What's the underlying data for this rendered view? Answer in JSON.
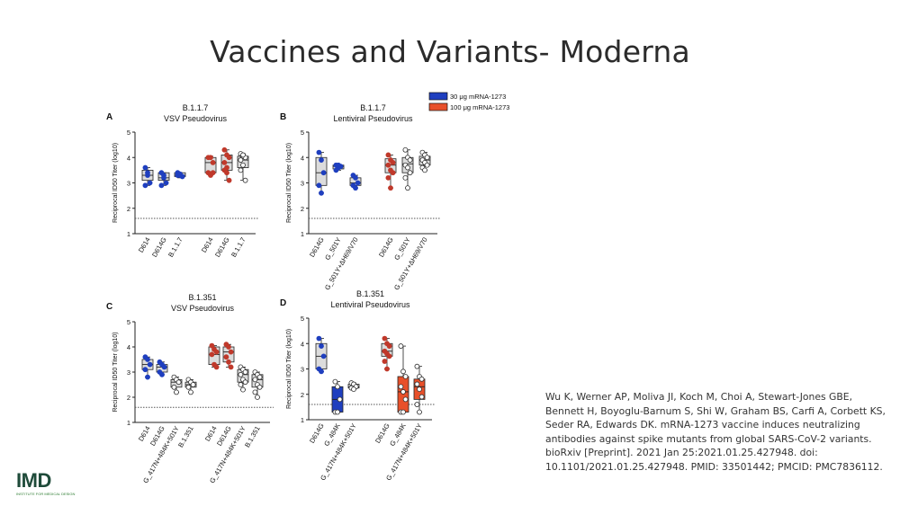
{
  "slide": {
    "title": "Vaccines and Variants- Moderna",
    "citation": "Wu K, Werner AP, Moliva JI, Koch M, Choi A, Stewart-Jones GBE, Bennett H, Boyoglu-Barnum S, Shi W, Graham BS, Carfi A, Corbett KS, Seder RA, Edwards DK. mRNA-1273 vaccine induces neutralizing antibodies against spike mutants from global SARS-CoV-2 variants. bioRxiv [Preprint]. 2021 Jan 25:2021.01.25.427948. doi: 10.1101/2021.01.25.427948. PMID: 33501442; PMCID: PMC7836112.",
    "logo_text": "IMD",
    "logo_tagline": "INSTITUTE FOR MEDICAL DESIGN"
  },
  "legend": {
    "items": [
      {
        "label": "30 μg mRNA-1273",
        "color": "#1f3fbf"
      },
      {
        "label": "100 μg mRNA-1273",
        "color": "#e8502a"
      }
    ]
  },
  "colors": {
    "blue": "#1f3fbf",
    "red": "#c0392b",
    "box_grey": "#dcdcdc",
    "axis": "#222222",
    "dotted_line": "#555555"
  },
  "chart_data": [
    {
      "panel": "A",
      "type": "box",
      "title": "B.1.1.7",
      "subtitle": "VSV Pseudovirus",
      "ylabel": "Reciprocal ID50 Titer (log10)",
      "ylim": [
        1,
        5
      ],
      "yticks": [
        1,
        2,
        3,
        4,
        5
      ],
      "threshold": 1.6,
      "categories": [
        {
          "label": "D614",
          "group": "30",
          "min": 2.9,
          "q1": 3.1,
          "median": 3.3,
          "q3": 3.5,
          "max": 3.6,
          "points": [
            3.6,
            3.3,
            3.0,
            2.9,
            3.4
          ]
        },
        {
          "label": "D614G",
          "group": "30",
          "min": 2.9,
          "q1": 3.1,
          "median": 3.2,
          "q3": 3.4,
          "max": 3.4,
          "points": [
            3.4,
            3.3,
            3.0,
            2.9,
            3.2
          ]
        },
        {
          "label": "B.1.1.7",
          "group": "30",
          "min": 3.2,
          "q1": 3.25,
          "median": 3.3,
          "q3": 3.4,
          "max": 3.4,
          "points": [
            3.4,
            3.3,
            3.25,
            3.3,
            3.35
          ]
        },
        {
          "label": "D614",
          "group": "100",
          "min": 3.3,
          "q1": 3.4,
          "median": 3.8,
          "q3": 4.0,
          "max": 4.05,
          "points": [
            4.0,
            4.0,
            3.8,
            3.4,
            3.3,
            3.4
          ]
        },
        {
          "label": "D614G",
          "group": "100",
          "min": 3.1,
          "q1": 3.5,
          "median": 3.8,
          "q3": 4.1,
          "max": 4.3,
          "points": [
            4.3,
            4.1,
            4.0,
            3.8,
            3.6,
            3.1,
            3.5,
            3.4
          ]
        },
        {
          "label": "B.1.1.7",
          "group": "100",
          "min": 3.1,
          "q1": 3.6,
          "median": 3.9,
          "q3": 4.05,
          "max": 4.15,
          "points": [
            4.15,
            4.05,
            4.0,
            3.9,
            3.7,
            3.1,
            3.5,
            4.1
          ]
        }
      ]
    },
    {
      "panel": "B",
      "type": "box",
      "title": "B.1.1.7",
      "subtitle": "Lentiviral Pseudovirus",
      "ylabel": "Reciprocal ID50 Titer (log10)",
      "ylim": [
        1,
        5
      ],
      "yticks": [
        1,
        2,
        3,
        4,
        5
      ],
      "threshold": 1.6,
      "categories": [
        {
          "label": "D614G",
          "group": "30",
          "min": 2.6,
          "q1": 2.9,
          "median": 3.4,
          "q3": 4.0,
          "max": 4.2,
          "points": [
            4.2,
            3.9,
            3.4,
            2.9,
            2.6
          ]
        },
        {
          "label": "G_501Y",
          "group": "30",
          "min": 3.5,
          "q1": 3.55,
          "median": 3.65,
          "q3": 3.7,
          "max": 3.7,
          "points": [
            3.7,
            3.6,
            3.65,
            3.5,
            3.7
          ]
        },
        {
          "label": "G_501Y+ΔH69/V70",
          "group": "30",
          "min": 2.8,
          "q1": 2.9,
          "median": 3.0,
          "q3": 3.2,
          "max": 3.3,
          "points": [
            3.3,
            3.2,
            3.0,
            2.9,
            2.8
          ]
        },
        {
          "label": "D614G",
          "group": "100",
          "min": 2.8,
          "q1": 3.4,
          "median": 3.7,
          "q3": 3.95,
          "max": 4.1,
          "points": [
            4.1,
            3.9,
            3.8,
            3.7,
            3.5,
            3.4,
            3.2,
            2.8
          ]
        },
        {
          "label": "G_501Y",
          "group": "100",
          "min": 2.8,
          "q1": 3.4,
          "median": 3.75,
          "q3": 4.0,
          "max": 4.3,
          "points": [
            4.3,
            4.0,
            3.9,
            3.7,
            3.6,
            3.4,
            3.2,
            2.8
          ]
        },
        {
          "label": "G_501Y+ΔH69/V70",
          "group": "100",
          "min": 3.5,
          "q1": 3.7,
          "median": 3.9,
          "q3": 4.05,
          "max": 4.2,
          "points": [
            4.2,
            4.1,
            4.0,
            3.9,
            3.8,
            3.7,
            3.6,
            3.5
          ]
        }
      ]
    },
    {
      "panel": "C",
      "type": "box",
      "title": "B.1.351",
      "subtitle": "VSV Pseudovirus",
      "ylabel": "Reciprocal ID50 Titer (log10)",
      "ylim": [
        1,
        5
      ],
      "yticks": [
        1,
        2,
        3,
        4,
        5
      ],
      "threshold": 1.6,
      "categories": [
        {
          "label": "D614",
          "group": "30",
          "min": 2.8,
          "q1": 3.1,
          "median": 3.3,
          "q3": 3.5,
          "max": 3.6,
          "points": [
            3.6,
            3.5,
            3.3,
            3.1,
            2.8
          ]
        },
        {
          "label": "D614G",
          "group": "30",
          "min": 2.9,
          "q1": 3.0,
          "median": 3.2,
          "q3": 3.3,
          "max": 3.4,
          "points": [
            3.4,
            3.3,
            3.2,
            3.0,
            2.9
          ]
        },
        {
          "label": "G_417N+484K+501Y",
          "group": "30",
          "min": 2.2,
          "q1": 2.4,
          "median": 2.6,
          "q3": 2.7,
          "max": 2.8,
          "points": [
            2.8,
            2.7,
            2.6,
            2.4,
            2.2
          ]
        },
        {
          "label": "B.1.351",
          "group": "30",
          "min": 2.2,
          "q1": 2.4,
          "median": 2.5,
          "q3": 2.6,
          "max": 2.7,
          "points": [
            2.7,
            2.6,
            2.5,
            2.4,
            2.2
          ]
        },
        {
          "label": "D614",
          "group": "100",
          "min": 3.2,
          "q1": 3.3,
          "median": 3.7,
          "q3": 4.0,
          "max": 4.05,
          "points": [
            4.05,
            3.9,
            3.8,
            3.7,
            3.3,
            3.2
          ]
        },
        {
          "label": "D614G",
          "group": "100",
          "min": 3.2,
          "q1": 3.4,
          "median": 3.8,
          "q3": 4.0,
          "max": 4.1,
          "points": [
            4.1,
            4.0,
            3.8,
            3.6,
            3.4,
            3.2
          ]
        },
        {
          "label": "G_417N+484K+501Y",
          "group": "100",
          "min": 2.3,
          "q1": 2.6,
          "median": 2.9,
          "q3": 3.1,
          "max": 3.2,
          "points": [
            3.2,
            3.1,
            3.0,
            2.9,
            2.7,
            2.6,
            2.5,
            2.3
          ]
        },
        {
          "label": "B.1.351",
          "group": "100",
          "min": 2.0,
          "q1": 2.4,
          "median": 2.7,
          "q3": 2.9,
          "max": 3.0,
          "points": [
            3.0,
            2.9,
            2.8,
            2.7,
            2.5,
            2.4,
            2.2,
            2.0
          ]
        }
      ]
    },
    {
      "panel": "D",
      "type": "box",
      "title": "B.1.351",
      "subtitle": "Lentiviral Pseudovirus",
      "ylabel": "Reciprocal ID50 Titer (log10)",
      "ylim": [
        1,
        5
      ],
      "yticks": [
        1,
        2,
        3,
        4,
        5
      ],
      "threshold": 1.6,
      "categories": [
        {
          "label": "D614G",
          "group": "30",
          "min": 2.9,
          "q1": 3.0,
          "median": 3.5,
          "q3": 4.0,
          "max": 4.2,
          "points": [
            4.2,
            3.9,
            3.5,
            3.0,
            2.9
          ]
        },
        {
          "label": "G_484K",
          "group": "30",
          "min": 1.3,
          "q1": 1.3,
          "median": 1.8,
          "q3": 2.3,
          "max": 2.5,
          "points": [
            2.5,
            2.3,
            1.8,
            1.3,
            1.3
          ]
        },
        {
          "label": "G_417N+484K+501Y",
          "group": "30",
          "min": 2.2,
          "q1": 2.25,
          "median": 2.3,
          "q3": 2.4,
          "max": 2.45,
          "points": [
            2.45,
            2.4,
            2.3,
            2.25,
            2.2
          ]
        },
        {
          "label": "D614G",
          "group": "100",
          "min": 3.0,
          "q1": 3.5,
          "median": 3.7,
          "q3": 4.0,
          "max": 4.2,
          "points": [
            4.2,
            4.0,
            3.9,
            3.7,
            3.6,
            3.5,
            3.3,
            3.0
          ]
        },
        {
          "label": "G_484K",
          "group": "100",
          "min": 1.3,
          "q1": 1.3,
          "median": 2.1,
          "q3": 2.7,
          "max": 3.9,
          "points": [
            3.9,
            2.9,
            2.7,
            2.3,
            2.1,
            1.8,
            1.3,
            1.3
          ]
        },
        {
          "label": "G_417N+484K+501Y",
          "group": "100",
          "min": 1.3,
          "q1": 1.8,
          "median": 2.3,
          "q3": 2.6,
          "max": 3.1,
          "points": [
            3.1,
            2.7,
            2.6,
            2.4,
            2.2,
            1.9,
            1.6,
            1.3
          ]
        }
      ]
    }
  ]
}
